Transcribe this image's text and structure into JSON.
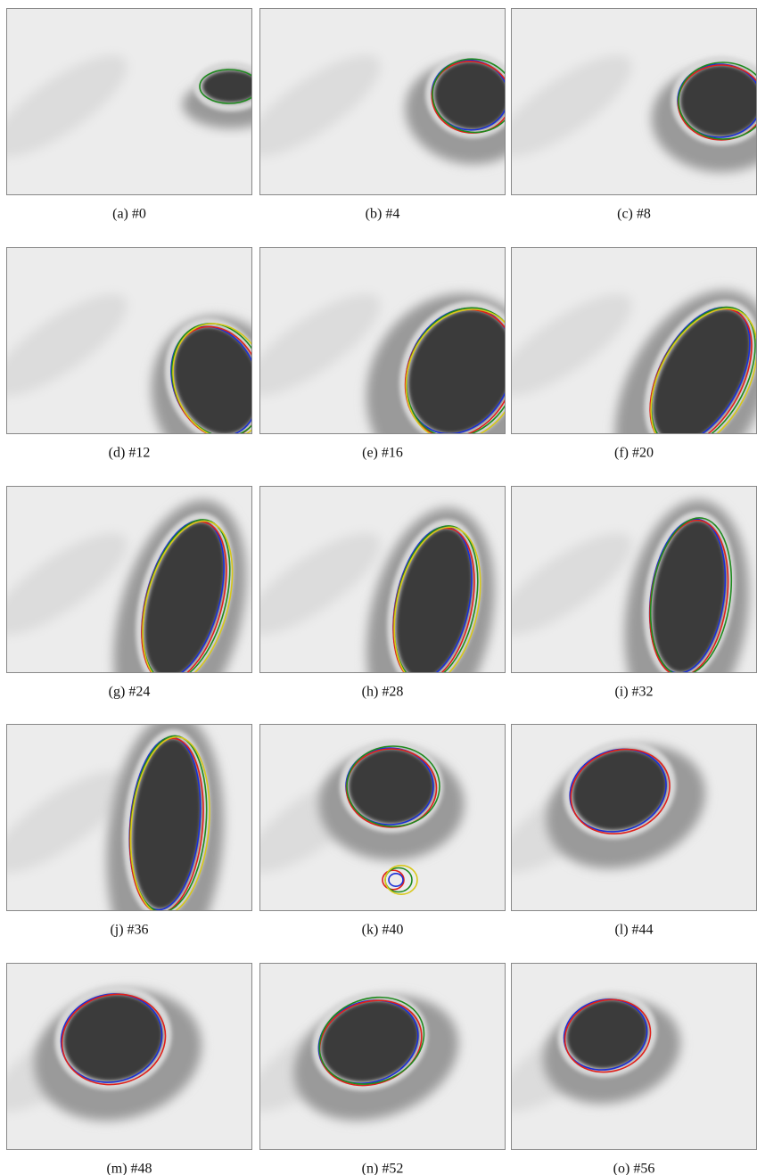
{
  "panels": [
    {
      "caption": "(a) #0"
    },
    {
      "caption": "(b) #4"
    },
    {
      "caption": "(c) #8"
    },
    {
      "caption": "(d) #12"
    },
    {
      "caption": "(e) #16"
    },
    {
      "caption": "(f) #20"
    },
    {
      "caption": "(g) #24"
    },
    {
      "caption": "(h) #28"
    },
    {
      "caption": "(i) #32"
    },
    {
      "caption": "(j) #36"
    },
    {
      "caption": "(k) #40"
    },
    {
      "caption": "(l) #44"
    },
    {
      "caption": "(m) #48"
    },
    {
      "caption": "(n) #52"
    },
    {
      "caption": "(o) #56"
    }
  ]
}
